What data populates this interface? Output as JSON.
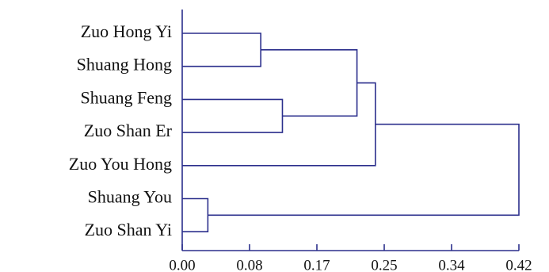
{
  "chart_data": {
    "type": "dendrogram",
    "title": "",
    "xlabel": "",
    "ylabel": "",
    "orientation": "horizontal",
    "leaves": [
      "Zuo Hong Yi",
      "Shuang Hong",
      "Shuang Feng",
      "Zuo Shan Er",
      "Zuo You Hong",
      "Shuang You",
      "Zuo Shan Yi"
    ],
    "x_ticks": [
      "0.00",
      "0.08",
      "0.17",
      "0.25",
      "0.34",
      "0.42"
    ],
    "xlim": [
      0,
      0.42
    ],
    "merges": [
      {
        "id": "m1",
        "children": [
          "leaf:0",
          "leaf:1"
        ],
        "height": 0.098
      },
      {
        "id": "m2",
        "children": [
          "leaf:2",
          "leaf:3"
        ],
        "height": 0.125
      },
      {
        "id": "m3",
        "children": [
          "node:m1",
          "node:m2"
        ],
        "height": 0.218
      },
      {
        "id": "m4",
        "children": [
          "node:m3",
          "leaf:4"
        ],
        "height": 0.241
      },
      {
        "id": "m5",
        "children": [
          "leaf:5",
          "leaf:6"
        ],
        "height": 0.032
      },
      {
        "id": "m6",
        "children": [
          "node:m4",
          "node:m5"
        ],
        "height": 0.42
      }
    ],
    "line_color": "#2b2f8c"
  }
}
